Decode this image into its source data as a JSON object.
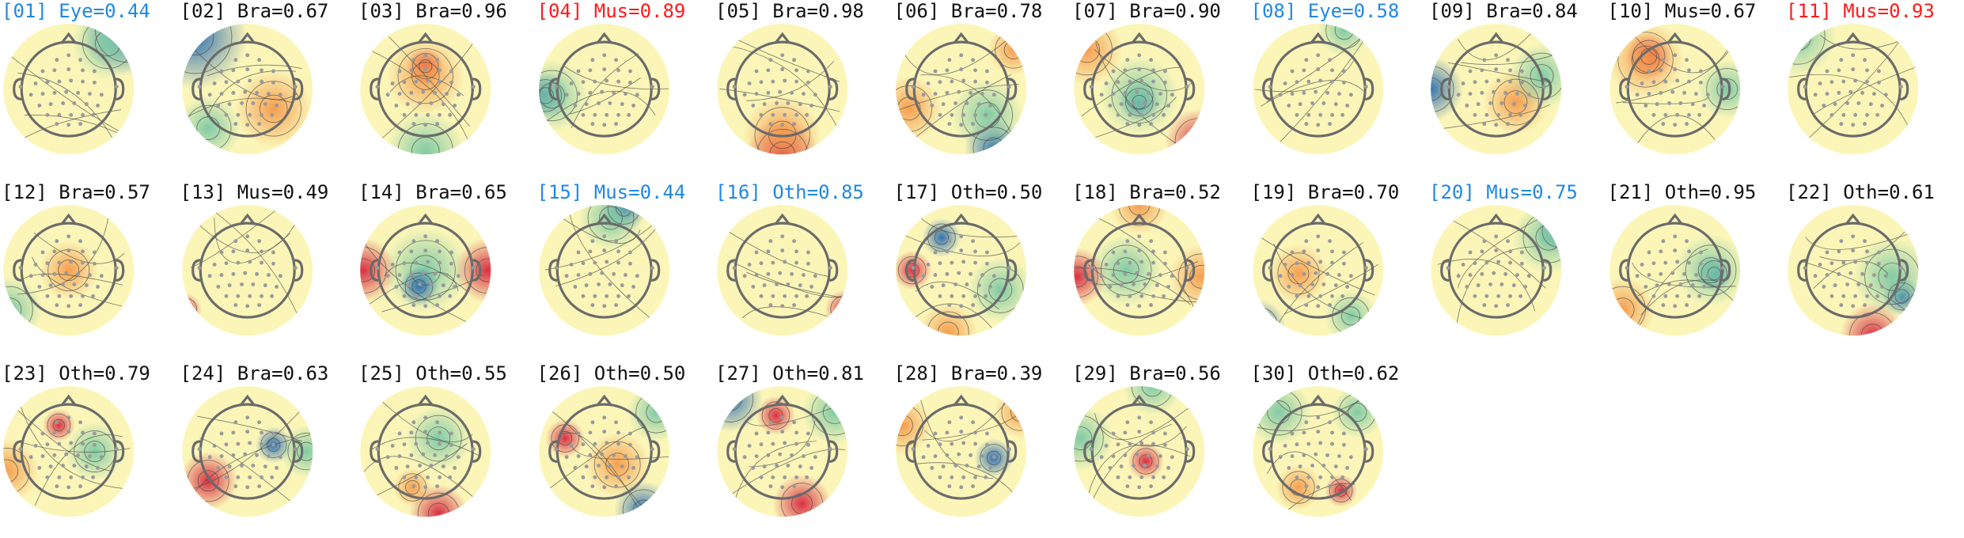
{
  "figure": {
    "panels": [
      {
        "index": "[01]",
        "label": "Eye",
        "score": "0.44",
        "status": "blue"
      },
      {
        "index": "[02]",
        "label": "Bra",
        "score": "0.67",
        "status": "black"
      },
      {
        "index": "[03]",
        "label": "Bra",
        "score": "0.96",
        "status": "black"
      },
      {
        "index": "[04]",
        "label": "Mus",
        "score": "0.89",
        "status": "red"
      },
      {
        "index": "[05]",
        "label": "Bra",
        "score": "0.98",
        "status": "black"
      },
      {
        "index": "[06]",
        "label": "Bra",
        "score": "0.78",
        "status": "black"
      },
      {
        "index": "[07]",
        "label": "Bra",
        "score": "0.90",
        "status": "black"
      },
      {
        "index": "[08]",
        "label": "Eye",
        "score": "0.58",
        "status": "blue"
      },
      {
        "index": "[09]",
        "label": "Bra",
        "score": "0.84",
        "status": "black"
      },
      {
        "index": "[10]",
        "label": "Mus",
        "score": "0.67",
        "status": "black"
      },
      {
        "index": "[11]",
        "label": "Mus",
        "score": "0.93",
        "status": "red"
      },
      {
        "index": "[12]",
        "label": "Bra",
        "score": "0.57",
        "status": "black"
      },
      {
        "index": "[13]",
        "label": "Mus",
        "score": "0.49",
        "status": "black"
      },
      {
        "index": "[14]",
        "label": "Bra",
        "score": "0.65",
        "status": "black"
      },
      {
        "index": "[15]",
        "label": "Mus",
        "score": "0.44",
        "status": "blue"
      },
      {
        "index": "[16]",
        "label": "Oth",
        "score": "0.85",
        "status": "blue"
      },
      {
        "index": "[17]",
        "label": "Oth",
        "score": "0.50",
        "status": "black"
      },
      {
        "index": "[18]",
        "label": "Bra",
        "score": "0.52",
        "status": "black"
      },
      {
        "index": "[19]",
        "label": "Bra",
        "score": "0.70",
        "status": "black"
      },
      {
        "index": "[20]",
        "label": "Mus",
        "score": "0.75",
        "status": "blue"
      },
      {
        "index": "[21]",
        "label": "Oth",
        "score": "0.95",
        "status": "black"
      },
      {
        "index": "[22]",
        "label": "Oth",
        "score": "0.61",
        "status": "black"
      },
      {
        "index": "[23]",
        "label": "Oth",
        "score": "0.79",
        "status": "black"
      },
      {
        "index": "[24]",
        "label": "Bra",
        "score": "0.63",
        "status": "black"
      },
      {
        "index": "[25]",
        "label": "Oth",
        "score": "0.55",
        "status": "black"
      },
      {
        "index": "[26]",
        "label": "Oth",
        "score": "0.50",
        "status": "black"
      },
      {
        "index": "[27]",
        "label": "Oth",
        "score": "0.81",
        "status": "black"
      },
      {
        "index": "[28]",
        "label": "Bra",
        "score": "0.39",
        "status": "black"
      },
      {
        "index": "[29]",
        "label": "Bra",
        "score": "0.56",
        "status": "black"
      },
      {
        "index": "[30]",
        "label": "Oth",
        "score": "0.62",
        "status": "black"
      }
    ]
  },
  "colors": {
    "black": "#111111",
    "blue": "#1e88e5",
    "red": "#ff1a1a",
    "map_base": "#fbf6b8",
    "map_warm": "#f59a4a",
    "map_hot": "#d7263d",
    "map_cool": "#7bc8a4",
    "map_cold": "#2b6cb0",
    "head_outline": "#6b6b6b",
    "electrode": "#9a9a9a"
  }
}
